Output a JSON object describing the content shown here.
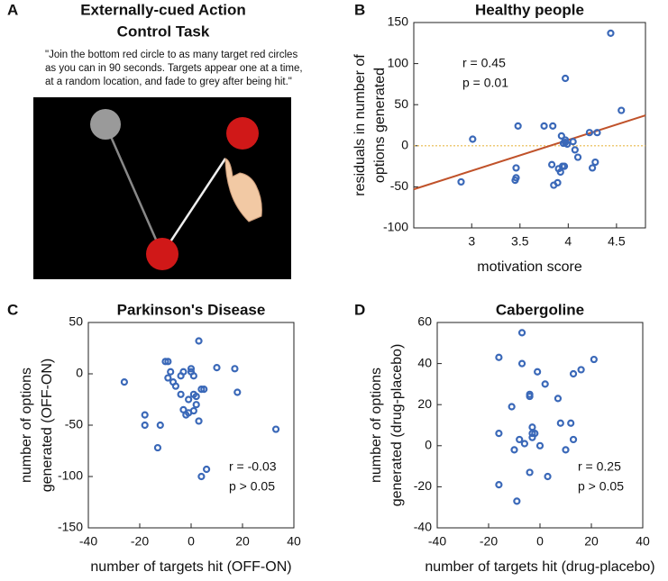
{
  "panel_a": {
    "label": "A",
    "title": [
      "Externally-cued Action",
      "Control Task"
    ],
    "caption": [
      "\"Join the bottom red circle to as many target red circles",
      "as you can in 90 seconds. Targets appear one at a time,",
      "at a random location, and fade to grey after being hit.\""
    ]
  },
  "chart_data": [
    {
      "type": "scatter",
      "panel": "B",
      "title": "Healthy people",
      "xlabel": "motivation score",
      "ylabel": [
        "residuals in number of",
        "options generated"
      ],
      "color": "#3a68b8",
      "x": [
        2.89,
        3.01,
        3.46,
        3.46,
        3.48,
        3.45,
        3.75,
        3.84,
        3.83,
        3.85,
        3.89,
        3.92,
        3.94,
        3.93,
        3.95,
        3.97,
        3.97,
        3.96,
        3.99,
        4.05,
        4.07,
        4.1,
        4.22,
        4.25,
        4.28,
        4.3,
        4.44,
        4.55,
        3.9,
        3.97
      ],
      "y": [
        -44,
        8,
        -27,
        -39,
        24,
        -42,
        24,
        24,
        -23,
        -48,
        -45,
        -32,
        -25,
        12,
        3,
        4,
        82,
        -25,
        2,
        5,
        -5,
        -14,
        16,
        -27,
        -20,
        16,
        137,
        43,
        -28,
        7
      ],
      "xlim": [
        2.4,
        4.8
      ],
      "xticks": [
        3,
        3.5,
        4,
        4.5
      ],
      "ylim": [
        -100,
        150
      ],
      "yticks": [
        -100,
        -50,
        0,
        50,
        100,
        150
      ],
      "fit_line": {
        "x": [
          2.4,
          4.8
        ],
        "y": [
          -53,
          37
        ],
        "color": "#c0522a"
      },
      "hline": {
        "y": 0,
        "color": "#e8b84a"
      },
      "annotations": [
        "r = 0.45",
        "p = 0.01"
      ],
      "annotation_corner": "top-left"
    },
    {
      "type": "scatter",
      "panel": "C",
      "title": "Parkinson's Disease",
      "xlabel": "number of targets hit (OFF-ON)",
      "ylabel": [
        "number of options",
        "generated (OFF-ON)"
      ],
      "color": "#3a68b8",
      "x": [
        -26,
        -18,
        -18,
        -12,
        -13,
        -10,
        -9,
        -8,
        -9,
        -7,
        -6,
        -4,
        -3,
        -4,
        -3,
        -2,
        -1,
        0,
        0,
        1,
        2,
        1,
        2,
        3,
        4,
        3,
        4,
        6,
        10,
        17,
        18,
        33,
        -1,
        1,
        5
      ],
      "y": [
        -8,
        -40,
        -50,
        -50,
        -72,
        12,
        12,
        2,
        -4,
        -8,
        -12,
        -2,
        2,
        -20,
        -35,
        -40,
        -38,
        2,
        5,
        -2,
        -30,
        -20,
        -22,
        -46,
        -15,
        32,
        -100,
        -93,
        6,
        5,
        -18,
        -54,
        -25,
        -36,
        -15
      ],
      "xlim": [
        -40,
        40
      ],
      "xticks": [
        -40,
        -20,
        0,
        20,
        40
      ],
      "ylim": [
        -150,
        50
      ],
      "yticks": [
        -150,
        -100,
        -50,
        0,
        50
      ],
      "annotations": [
        "r = -0.03",
        "p > 0.05"
      ],
      "annotation_corner": "bottom-right"
    },
    {
      "type": "scatter",
      "panel": "D",
      "title": "Cabergoline",
      "xlabel": "number of targets hit (drug-placebo)",
      "ylabel": [
        "number of options",
        "generated (drug-placebo)"
      ],
      "color": "#3a68b8",
      "x": [
        -16,
        -16,
        -16,
        -11,
        -10,
        -8,
        -7,
        -7,
        -6,
        -4,
        -4,
        -4,
        -3,
        -3,
        -2,
        -1,
        0,
        2,
        3,
        7,
        8,
        10,
        12,
        13,
        13,
        16,
        21,
        -9,
        -3
      ],
      "y": [
        43,
        6,
        -19,
        19,
        -2,
        3,
        55,
        40,
        1,
        24,
        25,
        -13,
        9,
        6,
        6,
        36,
        0,
        30,
        -15,
        23,
        11,
        -2,
        11,
        35,
        3,
        37,
        42,
        -27,
        4
      ],
      "xlim": [
        -40,
        40
      ],
      "xticks": [
        -40,
        -20,
        0,
        20,
        40
      ],
      "ylim": [
        -40,
        60
      ],
      "yticks": [
        -40,
        -20,
        0,
        20,
        40,
        60
      ],
      "annotations": [
        "r = 0.25",
        "p > 0.05"
      ],
      "annotation_corner": "bottom-right"
    }
  ]
}
